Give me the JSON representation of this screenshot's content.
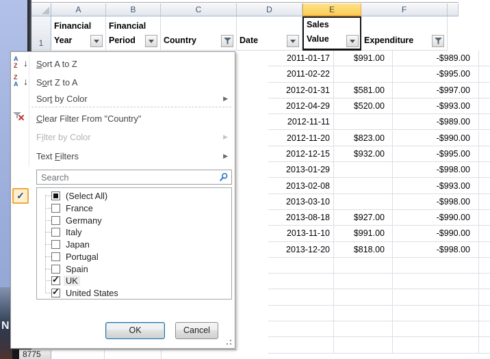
{
  "desktop": {
    "letter": "N"
  },
  "window": {
    "bottom_row_number": "8775"
  },
  "grid": {
    "column_letters": [
      "A",
      "B",
      "C",
      "D",
      "E",
      "F"
    ],
    "selected_column": "E",
    "row1": {
      "number": "1",
      "headers": [
        {
          "col": "A",
          "line1": "Financial",
          "line2": "Year",
          "button": "dropdown"
        },
        {
          "col": "B",
          "line1": "Financial",
          "line2": "Period",
          "button": "dropdown"
        },
        {
          "col": "C",
          "line1": "",
          "line2": "Country",
          "button": "funnel"
        },
        {
          "col": "D",
          "line1": "",
          "line2": "Date",
          "button": "dropdown"
        },
        {
          "col": "E",
          "line1": "Sales",
          "line2": "Value",
          "button": "dropdown",
          "active_cell": true
        },
        {
          "col": "F",
          "line1": "",
          "line2": "Expenditure",
          "button": "funnel"
        }
      ]
    },
    "rows": [
      {
        "date": "2011-01-17",
        "sales": "$991.00",
        "expenditure": "-$989.00"
      },
      {
        "date": "2011-02-22",
        "sales": "",
        "expenditure": "-$995.00"
      },
      {
        "date": "2012-01-31",
        "sales": "$581.00",
        "expenditure": "-$997.00"
      },
      {
        "date": "2012-04-29",
        "sales": "$520.00",
        "expenditure": "-$993.00"
      },
      {
        "date": "2012-11-11",
        "sales": "",
        "expenditure": "-$989.00"
      },
      {
        "date": "2012-11-20",
        "sales": "$823.00",
        "expenditure": "-$990.00"
      },
      {
        "date": "2012-12-15",
        "sales": "$932.00",
        "expenditure": "-$995.00"
      },
      {
        "date": "2013-01-29",
        "sales": "",
        "expenditure": "-$998.00"
      },
      {
        "date": "2013-02-08",
        "sales": "",
        "expenditure": "-$993.00"
      },
      {
        "date": "2013-03-10",
        "sales": "",
        "expenditure": "-$998.00"
      },
      {
        "date": "2013-08-18",
        "sales": "$927.00",
        "expenditure": "-$990.00"
      },
      {
        "date": "2013-11-10",
        "sales": "$991.00",
        "expenditure": "-$990.00"
      },
      {
        "date": "2013-12-20",
        "sales": "$818.00",
        "expenditure": "-$998.00"
      }
    ],
    "visible_empty_rows": 6
  },
  "filter_menu": {
    "items": [
      {
        "type": "item",
        "name": "sort-a-to-z",
        "icon": "sort-az-icon",
        "pre": "",
        "u": "S",
        "post": "ort A to Z"
      },
      {
        "type": "item",
        "name": "sort-z-to-a",
        "icon": "sort-za-icon",
        "pre": "S",
        "u": "o",
        "post": "rt Z to A"
      },
      {
        "type": "item",
        "name": "sort-by-color",
        "icon": "",
        "pre": "Sor",
        "u": "t",
        "post": " by Color",
        "submenu": true
      },
      {
        "type": "separator"
      },
      {
        "type": "item",
        "name": "clear-filter",
        "icon": "clear-filter-icon",
        "pre": "",
        "u": "C",
        "post": "lear Filter From \"Country\""
      },
      {
        "type": "item",
        "name": "filter-by-color",
        "icon": "",
        "pre": "F",
        "u": "i",
        "post": "lter by Color",
        "submenu": true,
        "disabled": true
      },
      {
        "type": "item",
        "name": "text-filters",
        "icon": "",
        "pre": "Text ",
        "u": "F",
        "post": "ilters",
        "submenu": true
      }
    ],
    "search": {
      "placeholder": "Search"
    },
    "list": {
      "items": [
        {
          "label": "(Select All)",
          "state": "filled"
        },
        {
          "label": "France",
          "state": "unchecked"
        },
        {
          "label": "Germany",
          "state": "unchecked"
        },
        {
          "label": "Italy",
          "state": "unchecked"
        },
        {
          "label": "Japan",
          "state": "unchecked"
        },
        {
          "label": "Portugal",
          "state": "unchecked"
        },
        {
          "label": "Spain",
          "state": "unchecked"
        },
        {
          "label": "UK",
          "state": "checked",
          "highlighted": true
        },
        {
          "label": "United States",
          "state": "checked"
        }
      ]
    },
    "buttons": {
      "ok": "OK",
      "cancel": "Cancel"
    },
    "check_icon_glyph": "✓"
  },
  "icons": {
    "sort-az-icon": "letters A over Z with down arrow",
    "sort-za-icon": "letters Z over A with down arrow",
    "clear-filter-icon": "funnel with red x",
    "funnel-icon": "filter funnel",
    "dropdown-arrow-icon": "small down triangle",
    "search-icon": "magnifier",
    "check-icon": "checkmark",
    "submenu-arrow-icon": "right triangle"
  },
  "colors": {
    "selected_column_fill": "#FBCE55",
    "selected_column_border": "#E8A33D",
    "grid_line": "#D4DAE3",
    "header_text": "#3F5570",
    "desktop_blue": "#9FB1DC",
    "ok_button_border": "#2F6C99",
    "check_button_border": "#F0A63C",
    "search_icon_blue": "#2E7CC3"
  }
}
